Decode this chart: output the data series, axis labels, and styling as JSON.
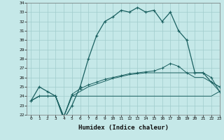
{
  "xlabel": "Humidex (Indice chaleur)",
  "background_color": "#c5e8e8",
  "grid_color": "#a0cccc",
  "line_color": "#1a6060",
  "hours": [
    0,
    1,
    2,
    3,
    4,
    5,
    6,
    7,
    8,
    9,
    10,
    11,
    12,
    13,
    14,
    15,
    16,
    17,
    18,
    19,
    20,
    21,
    22,
    23
  ],
  "series1": [
    23.5,
    25.0,
    24.5,
    24.0,
    21.5,
    23.0,
    25.0,
    28.0,
    30.5,
    32.0,
    32.5,
    33.2,
    33.0,
    33.5,
    33.0,
    33.2,
    32.0,
    33.0,
    31.0,
    30.0,
    26.5,
    26.5,
    25.5,
    25.0
  ],
  "series2": [
    23.5,
    24.0,
    24.0,
    24.0,
    21.8,
    24.0,
    24.0,
    24.0,
    24.0,
    24.0,
    24.0,
    24.0,
    24.0,
    24.0,
    24.0,
    24.0,
    24.0,
    24.0,
    24.0,
    24.0,
    24.0,
    24.0,
    24.0,
    24.5
  ],
  "series3": [
    23.5,
    24.0,
    24.0,
    24.0,
    21.8,
    24.0,
    24.5,
    25.0,
    25.3,
    25.6,
    25.9,
    26.1,
    26.3,
    26.4,
    26.5,
    26.5,
    26.5,
    26.5,
    26.5,
    26.5,
    26.0,
    26.0,
    25.5,
    24.5
  ],
  "series4": [
    23.5,
    24.0,
    24.0,
    24.0,
    21.8,
    24.2,
    24.8,
    25.2,
    25.5,
    25.8,
    26.0,
    26.2,
    26.4,
    26.5,
    26.6,
    26.7,
    27.0,
    27.5,
    27.2,
    26.5,
    26.5,
    26.5,
    26.0,
    24.5
  ],
  "ylim": [
    22,
    34
  ],
  "xlim": [
    -0.5,
    23
  ]
}
